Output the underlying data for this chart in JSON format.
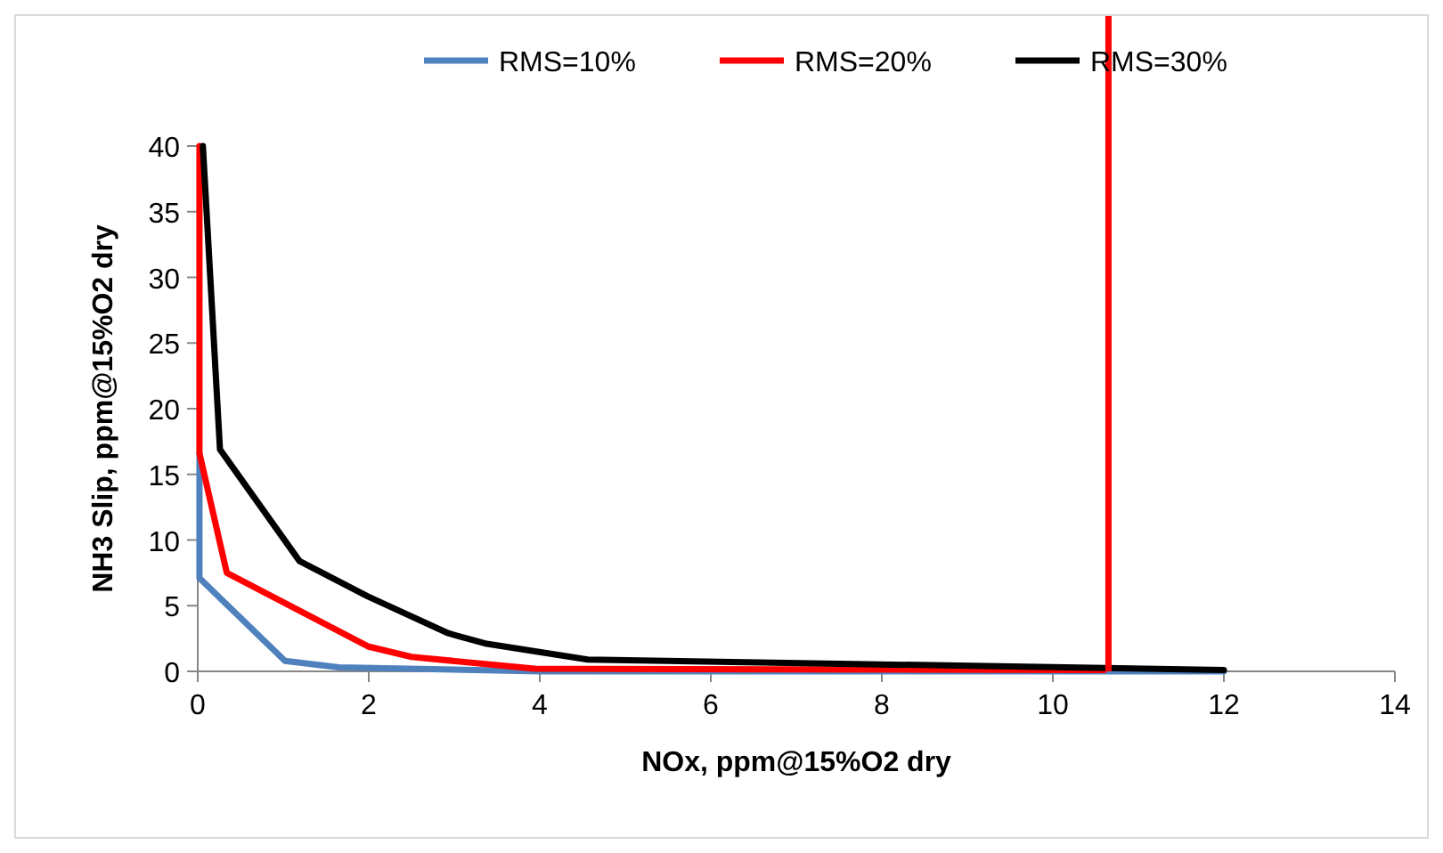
{
  "chart_data": {
    "type": "line",
    "xlabel": "NOx, ppm@15%O2 dry",
    "ylabel": "NH3 Slip, ppm@15%O2 dry",
    "xlim": [
      0,
      14
    ],
    "xticks": [
      0,
      2,
      4,
      6,
      8,
      10,
      12,
      14
    ],
    "ylim": [
      0,
      40
    ],
    "yticks": [
      0,
      5,
      10,
      15,
      20,
      25,
      30,
      35,
      40
    ],
    "legend": "top",
    "grid": false,
    "marker": "none",
    "line_style": "solid",
    "series": [
      {
        "name": "RMS=10%",
        "color": "#4f81bd",
        "x": [
          0.02,
          0.02,
          1.02,
          1.65,
          4,
          12
        ],
        "values": [
          16.6,
          7.1,
          0.8,
          0.3,
          0,
          0
        ]
      },
      {
        "name": "RMS=20%",
        "color": "#ff0000",
        "x": [
          0.02,
          0.02,
          0.34,
          1.99,
          2.5,
          3.94,
          10.6
        ],
        "values": [
          40,
          16.6,
          7.5,
          1.9,
          1.1,
          0.2,
          0.1
        ]
      },
      {
        "name": "RMS=30%",
        "color": "#000000",
        "x": [
          0.06,
          0.26,
          1.19,
          1.99,
          2.93,
          3.38,
          4.56,
          12
        ],
        "values": [
          40,
          16.9,
          8.4,
          5.7,
          2.9,
          2.1,
          0.9,
          0.1
        ]
      }
    ],
    "ref_lines": [
      {
        "axis": "x",
        "value": 10.65,
        "color": "#ff0000"
      }
    ]
  }
}
